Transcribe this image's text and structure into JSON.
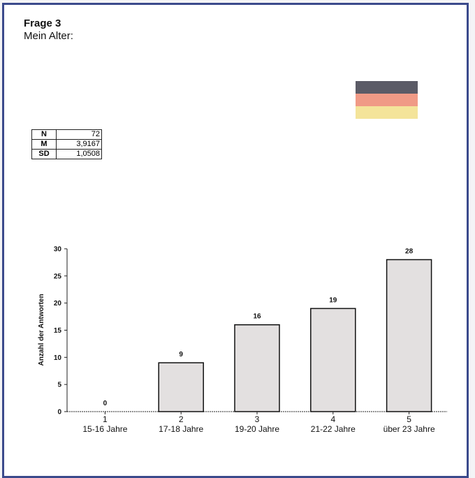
{
  "header": {
    "title": "Frage 3",
    "subtitle": "Mein Alter:"
  },
  "flag_colors": [
    "#5b5b66",
    "#f09a86",
    "#f4e49a"
  ],
  "stats": [
    {
      "key": "N",
      "value": "72"
    },
    {
      "key": "M",
      "value": "3,9167"
    },
    {
      "key": "SD",
      "value": "1,0508"
    }
  ],
  "chart_data": {
    "type": "bar",
    "categories": [
      "1",
      "2",
      "3",
      "4",
      "5"
    ],
    "category_sublabels": [
      "15-16 Jahre",
      "17-18 Jahre",
      "19-20 Jahre",
      "21-22 Jahre",
      "über 23 Jahre"
    ],
    "values": [
      0,
      9,
      16,
      19,
      28
    ],
    "data_labels": [
      "0",
      "9",
      "16",
      "19",
      "28"
    ],
    "ylabel": "Anzahl der Antworten",
    "ylim": [
      0,
      30
    ],
    "yticks": [
      "0",
      "5",
      "10",
      "15",
      "20",
      "25",
      "30"
    ],
    "grid": false,
    "bar_color": "#e3e0e0"
  }
}
